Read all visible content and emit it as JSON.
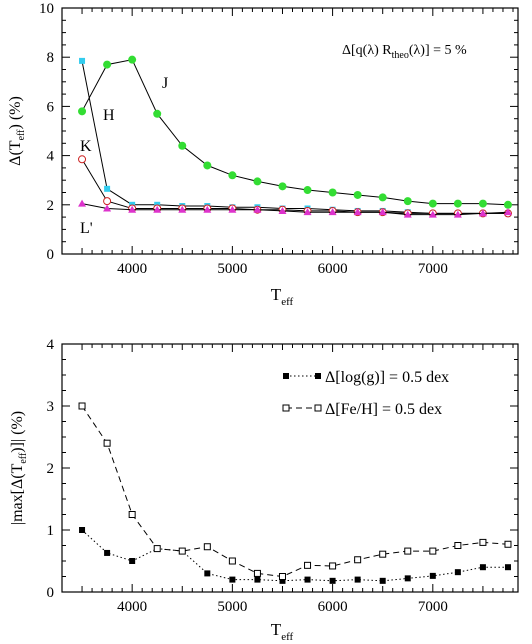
{
  "colors": {
    "J": "#33dd33",
    "H": "#33ccee",
    "K": "#cc2222",
    "L'": "#dd33cc",
    "line": "#000000"
  },
  "chart_data": [
    {
      "type": "line",
      "title": "",
      "annotation": "Δ[q(λ) R_theo(λ)] = 5 %",
      "annotation_parts": {
        "prefix": "Δ[q(λ) R",
        "sub": "theo",
        "suffix": "(λ)] = 5 %"
      },
      "xlabel": "T",
      "xlabel_sub": "eff",
      "ylabel": "Δ(T",
      "ylabel_sub": "eff",
      "ylabel_suffix": ") (%)",
      "xlim": [
        3300,
        7850
      ],
      "ylim": [
        0,
        10
      ],
      "xticks": [
        4000,
        5000,
        6000,
        7000
      ],
      "yticks": [
        0,
        2,
        4,
        6,
        8,
        10
      ],
      "grid": false,
      "series": [
        {
          "name": "J",
          "marker": "filled-circle",
          "x": [
            3500,
            3750,
            4000,
            4250,
            4500,
            4750,
            5000,
            5250,
            5500,
            5750,
            6000,
            6250,
            6500,
            6750,
            7000,
            7250,
            7500,
            7750
          ],
          "y": [
            5.8,
            7.7,
            7.9,
            5.7,
            4.4,
            3.6,
            3.2,
            2.95,
            2.75,
            2.6,
            2.5,
            2.4,
            2.3,
            2.15,
            2.05,
            2.05,
            2.05,
            2.0
          ]
        },
        {
          "name": "H",
          "marker": "filled-square",
          "x": [
            3500,
            3750,
            4000,
            4250,
            4500,
            4750,
            5000,
            5250,
            5500,
            5750,
            6000,
            6250,
            6500,
            6750,
            7000,
            7250,
            7500,
            7750
          ],
          "y": [
            7.85,
            2.65,
            2.0,
            2.0,
            1.95,
            1.95,
            1.9,
            1.9,
            1.85,
            1.85,
            1.8,
            1.75,
            1.75,
            1.7,
            1.65,
            1.65,
            1.65,
            1.65
          ]
        },
        {
          "name": "K",
          "marker": "open-circle",
          "x": [
            3500,
            3750,
            4000,
            4250,
            4500,
            4750,
            5000,
            5250,
            5500,
            5750,
            6000,
            6250,
            6500,
            6750,
            7000,
            7250,
            7500,
            7750
          ],
          "y": [
            3.85,
            2.15,
            1.85,
            1.85,
            1.85,
            1.85,
            1.85,
            1.8,
            1.8,
            1.75,
            1.75,
            1.7,
            1.7,
            1.65,
            1.65,
            1.65,
            1.65,
            1.65
          ]
        },
        {
          "name": "L'",
          "marker": "filled-triangle",
          "x": [
            3500,
            3750,
            4000,
            4250,
            4500,
            4750,
            5000,
            5250,
            5500,
            5750,
            6000,
            6250,
            6500,
            6750,
            7000,
            7250,
            7500,
            7750
          ],
          "y": [
            2.05,
            1.85,
            1.8,
            1.8,
            1.8,
            1.8,
            1.8,
            1.8,
            1.75,
            1.7,
            1.7,
            1.7,
            1.7,
            1.6,
            1.6,
            1.6,
            1.65,
            1.7
          ]
        }
      ],
      "series_labels": [
        "J",
        "H",
        "K",
        "L'"
      ]
    },
    {
      "type": "line",
      "title": "",
      "xlabel": "T",
      "xlabel_sub": "eff",
      "ylabel": "|max[Δ(T",
      "ylabel_sub": "eff",
      "ylabel_suffix": ")]| (%)",
      "xlim": [
        3300,
        7850
      ],
      "ylim": [
        0,
        4
      ],
      "xticks": [
        4000,
        5000,
        6000,
        7000
      ],
      "yticks": [
        0,
        1,
        2,
        3,
        4
      ],
      "grid": false,
      "legend_position": "top-right",
      "series": [
        {
          "name": "Δ[log(g)] = 0.5 dex",
          "marker": "filled-square",
          "line_style": "dotted",
          "x": [
            3500,
            3750,
            4000,
            4250,
            4500,
            4750,
            5000,
            5250,
            5500,
            5750,
            6000,
            6250,
            6500,
            6750,
            7000,
            7250,
            7500,
            7750
          ],
          "y": [
            1.0,
            0.63,
            0.5,
            0.7,
            0.66,
            0.3,
            0.2,
            0.2,
            0.18,
            0.2,
            0.18,
            0.2,
            0.18,
            0.22,
            0.26,
            0.32,
            0.4,
            0.4
          ]
        },
        {
          "name": "Δ[Fe/H] = 0.5 dex",
          "marker": "open-square",
          "line_style": "dashed",
          "x": [
            3500,
            3750,
            4000,
            4250,
            4500,
            4750,
            5000,
            5250,
            5500,
            5750,
            6000,
            6250,
            6500,
            6750,
            7000,
            7250,
            7500,
            7750
          ],
          "y": [
            3.0,
            2.4,
            1.25,
            0.7,
            0.66,
            0.73,
            0.5,
            0.3,
            0.25,
            0.43,
            0.42,
            0.52,
            0.61,
            0.66,
            0.66,
            0.75,
            0.8,
            0.77
          ]
        }
      ]
    }
  ]
}
